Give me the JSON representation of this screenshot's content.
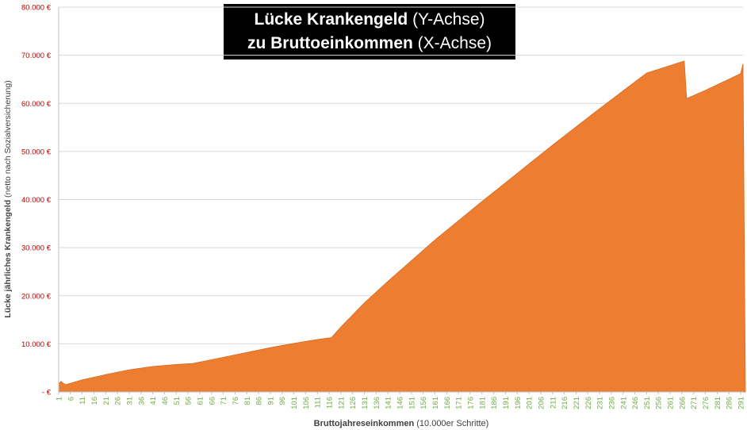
{
  "chart_data": {
    "type": "area",
    "title": {
      "line1_bold": "Lücke Krankengeld",
      "line1_normal": " (Y-Achse)",
      "line2_bold": "zu Bruttoeinkommen",
      "line2_normal": " (X-Achse)"
    },
    "xlabel_bold": "Bruttojahreseinkommen",
    "xlabel_normal": " (10.000er Schritte)",
    "ylabel_bold": "Lücke jährliches Krankengeld",
    "ylabel_normal": " (netto nach Sozialversicherung)",
    "ylim": [
      0,
      80000
    ],
    "y_ticks": [
      {
        "value": 0,
        "label": "- €"
      },
      {
        "value": 10000,
        "label": "10.000 €"
      },
      {
        "value": 20000,
        "label": "20.000 €"
      },
      {
        "value": 30000,
        "label": "30.000 €"
      },
      {
        "value": 40000,
        "label": "40.000 €"
      },
      {
        "value": 50000,
        "label": "50.000 €"
      },
      {
        "value": 60000,
        "label": "60.000 €"
      },
      {
        "value": 70000,
        "label": "70.000 €"
      },
      {
        "value": 80000,
        "label": "80.000 €"
      }
    ],
    "x_range": [
      1,
      292
    ],
    "x_tick_labels": [
      "1",
      "6",
      "11",
      "16",
      "21",
      "26",
      "31",
      "36",
      "41",
      "46",
      "51",
      "56",
      "61",
      "66",
      "71",
      "76",
      "81",
      "86",
      "91",
      "96",
      "101",
      "106",
      "111",
      "116",
      "121",
      "126",
      "131",
      "136",
      "141",
      "146",
      "151",
      "156",
      "161",
      "166",
      "171",
      "176",
      "181",
      "186",
      "191",
      "196",
      "201",
      "206",
      "211",
      "216",
      "221",
      "226",
      "231",
      "236",
      "241",
      "246",
      "251",
      "256",
      "261",
      "266",
      "271",
      "276",
      "281",
      "286",
      "291"
    ],
    "series": [
      {
        "name": "Lücke Krankengeld",
        "color": "#ED7D31",
        "points": [
          [
            1,
            1700
          ],
          [
            2,
            2200
          ],
          [
            3,
            1800
          ],
          [
            4,
            1500
          ],
          [
            11,
            2500
          ],
          [
            21,
            3600
          ],
          [
            31,
            4600
          ],
          [
            41,
            5300
          ],
          [
            51,
            5700
          ],
          [
            58,
            5900
          ],
          [
            61,
            6200
          ],
          [
            71,
            7200
          ],
          [
            81,
            8200
          ],
          [
            91,
            9200
          ],
          [
            101,
            10100
          ],
          [
            111,
            10900
          ],
          [
            117,
            11300
          ],
          [
            121,
            13500
          ],
          [
            131,
            18500
          ],
          [
            141,
            23000
          ],
          [
            151,
            27300
          ],
          [
            161,
            31600
          ],
          [
            171,
            35600
          ],
          [
            181,
            39600
          ],
          [
            191,
            43500
          ],
          [
            201,
            47400
          ],
          [
            211,
            51300
          ],
          [
            221,
            55100
          ],
          [
            231,
            58900
          ],
          [
            241,
            62600
          ],
          [
            251,
            66300
          ],
          [
            267,
            68800
          ],
          [
            268,
            61000
          ],
          [
            276,
            62700
          ],
          [
            286,
            65000
          ],
          [
            291,
            66200
          ],
          [
            292,
            68200
          ],
          [
            293,
            0
          ]
        ]
      }
    ]
  },
  "colors": {
    "area": "#ED7D31",
    "y_tick_text": "#C00000",
    "x_tick_text": "#70AD47",
    "grid": "#D9D9D9",
    "axis_title": "#404040"
  }
}
